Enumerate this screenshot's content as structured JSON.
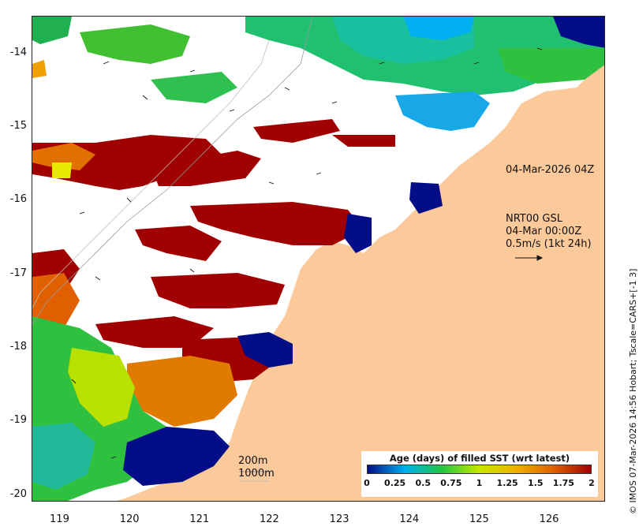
{
  "map": {
    "lon_range": [
      118.6,
      126.8
    ],
    "lat_range": [
      -20.1,
      -13.5
    ],
    "y_ticks": [
      "-14",
      "-15",
      "-16",
      "-17",
      "-18",
      "-19",
      "-20"
    ],
    "y_tick_values": [
      -14,
      -15,
      -16,
      -17,
      -18,
      -19,
      -20
    ],
    "x_ticks": [
      "119",
      "120",
      "121",
      "122",
      "123",
      "124",
      "125",
      "126"
    ],
    "x_tick_values": [
      119,
      120,
      121,
      122,
      123,
      124,
      125,
      126
    ],
    "colors": {
      "land": "#fcc99a",
      "no_data": "#ffffff",
      "age_0": "#020d87",
      "age_0_5": "#00b0f0",
      "age_1": "#20c840",
      "age_1_25": "#c8e800",
      "age_1_5": "#f0b000",
      "age_1_75": "#e06000",
      "age_2": "#a00000"
    }
  },
  "annotations": {
    "timestamp": "04-Mar-2026 04Z",
    "current_product": "NRT00 GSL",
    "current_time": "04-Mar 00:00Z",
    "current_scale": "0.5m/s (1kt 24h)",
    "isobath_200": "200m",
    "isobath_1000": "1000m"
  },
  "legend": {
    "title": "Age (days) of filled SST (wrt latest)",
    "ticks": [
      "0",
      "0.25",
      "0.5",
      "0.75",
      "1",
      "1.25",
      "1.5",
      "1.75",
      "2"
    ],
    "tick_values": [
      0,
      0.25,
      0.5,
      0.75,
      1,
      1.25,
      1.5,
      1.75,
      2
    ]
  },
  "credit": "© IMOS 07-Mar-2026 14:56 Hobart; Tscale=CARS+[-1 3]"
}
